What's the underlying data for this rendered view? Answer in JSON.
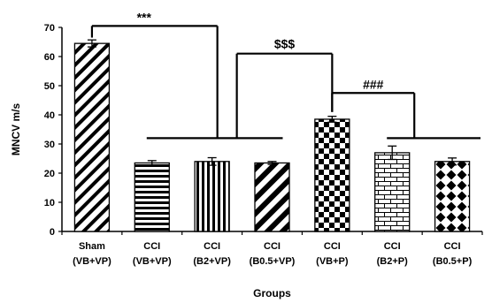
{
  "chart_data": {
    "type": "bar",
    "xlabel": "Groups",
    "ylabel": "MNCV m/s",
    "ylim": [
      0,
      70
    ],
    "yticks": [
      0,
      10,
      20,
      30,
      40,
      50,
      60,
      70
    ],
    "categories": [
      [
        "Sham",
        "(VB+VP)"
      ],
      [
        "CCI",
        "(VB+VP)"
      ],
      [
        "CCI",
        "(B2+VP)"
      ],
      [
        "CCI",
        "(B0.5+VP)"
      ],
      [
        "CCI",
        "(VB+P)"
      ],
      [
        "CCI",
        "(B2+P)"
      ],
      [
        "CCI",
        "(B0.5+P)"
      ]
    ],
    "values": [
      64.5,
      23.5,
      24.0,
      23.5,
      38.5,
      27.0,
      24.0
    ],
    "errors": [
      1.2,
      0.8,
      1.3,
      0.5,
      1.0,
      2.3,
      1.2
    ],
    "patterns": [
      "diagonal-stripes",
      "horizontal-stripes",
      "vertical-stripes",
      "diagonal-stripes-wide",
      "checkerboard",
      "brick",
      "diamonds"
    ],
    "significance": [
      {
        "label": "***",
        "from": 0,
        "to": "group 1-3"
      },
      {
        "label": "$$$",
        "from": "group 1-3",
        "to": 4
      },
      {
        "label": "###",
        "from": 4,
        "to": "group 5-6"
      }
    ],
    "grid": false,
    "legend": "none"
  }
}
